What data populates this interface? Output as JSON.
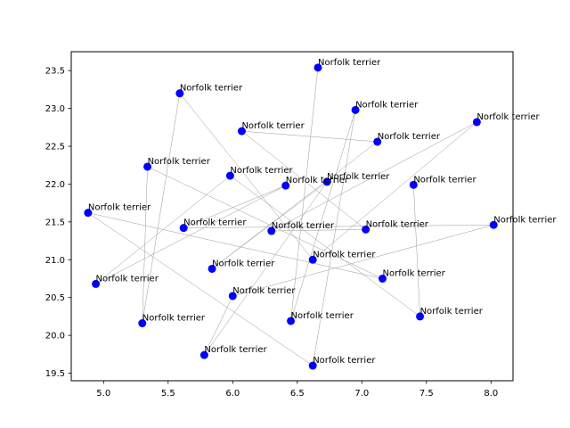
{
  "chart_data": {
    "type": "scatter",
    "title": "",
    "xlabel": "",
    "ylabel": "",
    "xlim": [
      4.75,
      8.17
    ],
    "ylim": [
      19.4,
      23.75
    ],
    "x_ticks": [
      "5.0",
      "5.5",
      "6.0",
      "6.5",
      "7.0",
      "7.5",
      "8.0"
    ],
    "y_ticks": [
      "19.5",
      "20.0",
      "20.5",
      "21.0",
      "21.5",
      "22.0",
      "22.5",
      "23.0",
      "23.5"
    ],
    "grid": false,
    "legend": "none",
    "marker_color": "#0000ff",
    "line_color": "#999999",
    "points": [
      {
        "x": 6.66,
        "y": 23.54,
        "label": "Norfolk terrier"
      },
      {
        "x": 5.59,
        "y": 23.2,
        "label": "Norfolk terrier"
      },
      {
        "x": 6.95,
        "y": 22.98,
        "label": "Norfolk terrier"
      },
      {
        "x": 7.89,
        "y": 22.82,
        "label": "Norfolk terrier"
      },
      {
        "x": 6.07,
        "y": 22.7,
        "label": "Norfolk terrier"
      },
      {
        "x": 7.12,
        "y": 22.56,
        "label": "Norfolk terrier"
      },
      {
        "x": 5.34,
        "y": 22.23,
        "label": "Norfolk terrier"
      },
      {
        "x": 5.98,
        "y": 22.11,
        "label": "Norfolk terrier"
      },
      {
        "x": 6.73,
        "y": 22.03,
        "label": "Norfolk terrier"
      },
      {
        "x": 6.41,
        "y": 21.98,
        "label": "Norfolk terrier"
      },
      {
        "x": 7.4,
        "y": 21.99,
        "label": "Norfolk terrier"
      },
      {
        "x": 4.88,
        "y": 21.62,
        "label": "Norfolk terrier"
      },
      {
        "x": 8.02,
        "y": 21.46,
        "label": "Norfolk terrier"
      },
      {
        "x": 5.62,
        "y": 21.42,
        "label": "Norfolk terrier"
      },
      {
        "x": 6.3,
        "y": 21.38,
        "label": "Norfolk terrier"
      },
      {
        "x": 7.03,
        "y": 21.4,
        "label": "Norfolk terrier"
      },
      {
        "x": 6.62,
        "y": 21.0,
        "label": "Norfolk terrier"
      },
      {
        "x": 5.84,
        "y": 20.88,
        "label": "Norfolk terrier"
      },
      {
        "x": 4.94,
        "y": 20.68,
        "label": "Norfolk terrier"
      },
      {
        "x": 7.16,
        "y": 20.75,
        "label": "Norfolk terrier"
      },
      {
        "x": 6.0,
        "y": 20.52,
        "label": "Norfolk terrier"
      },
      {
        "x": 7.45,
        "y": 20.25,
        "label": "Norfolk terrier"
      },
      {
        "x": 6.45,
        "y": 20.19,
        "label": "Norfolk terrier"
      },
      {
        "x": 5.3,
        "y": 20.16,
        "label": "Norfolk terrier"
      },
      {
        "x": 5.78,
        "y": 19.74,
        "label": "Norfolk terrier"
      },
      {
        "x": 6.62,
        "y": 19.6,
        "label": "Norfolk terrier"
      }
    ],
    "connection_order": [
      0,
      22,
      2,
      25,
      11,
      19,
      6,
      23,
      1,
      16,
      3,
      14,
      15,
      4,
      5,
      17,
      8,
      24,
      20,
      12,
      13,
      9,
      18,
      7,
      21,
      10
    ]
  }
}
